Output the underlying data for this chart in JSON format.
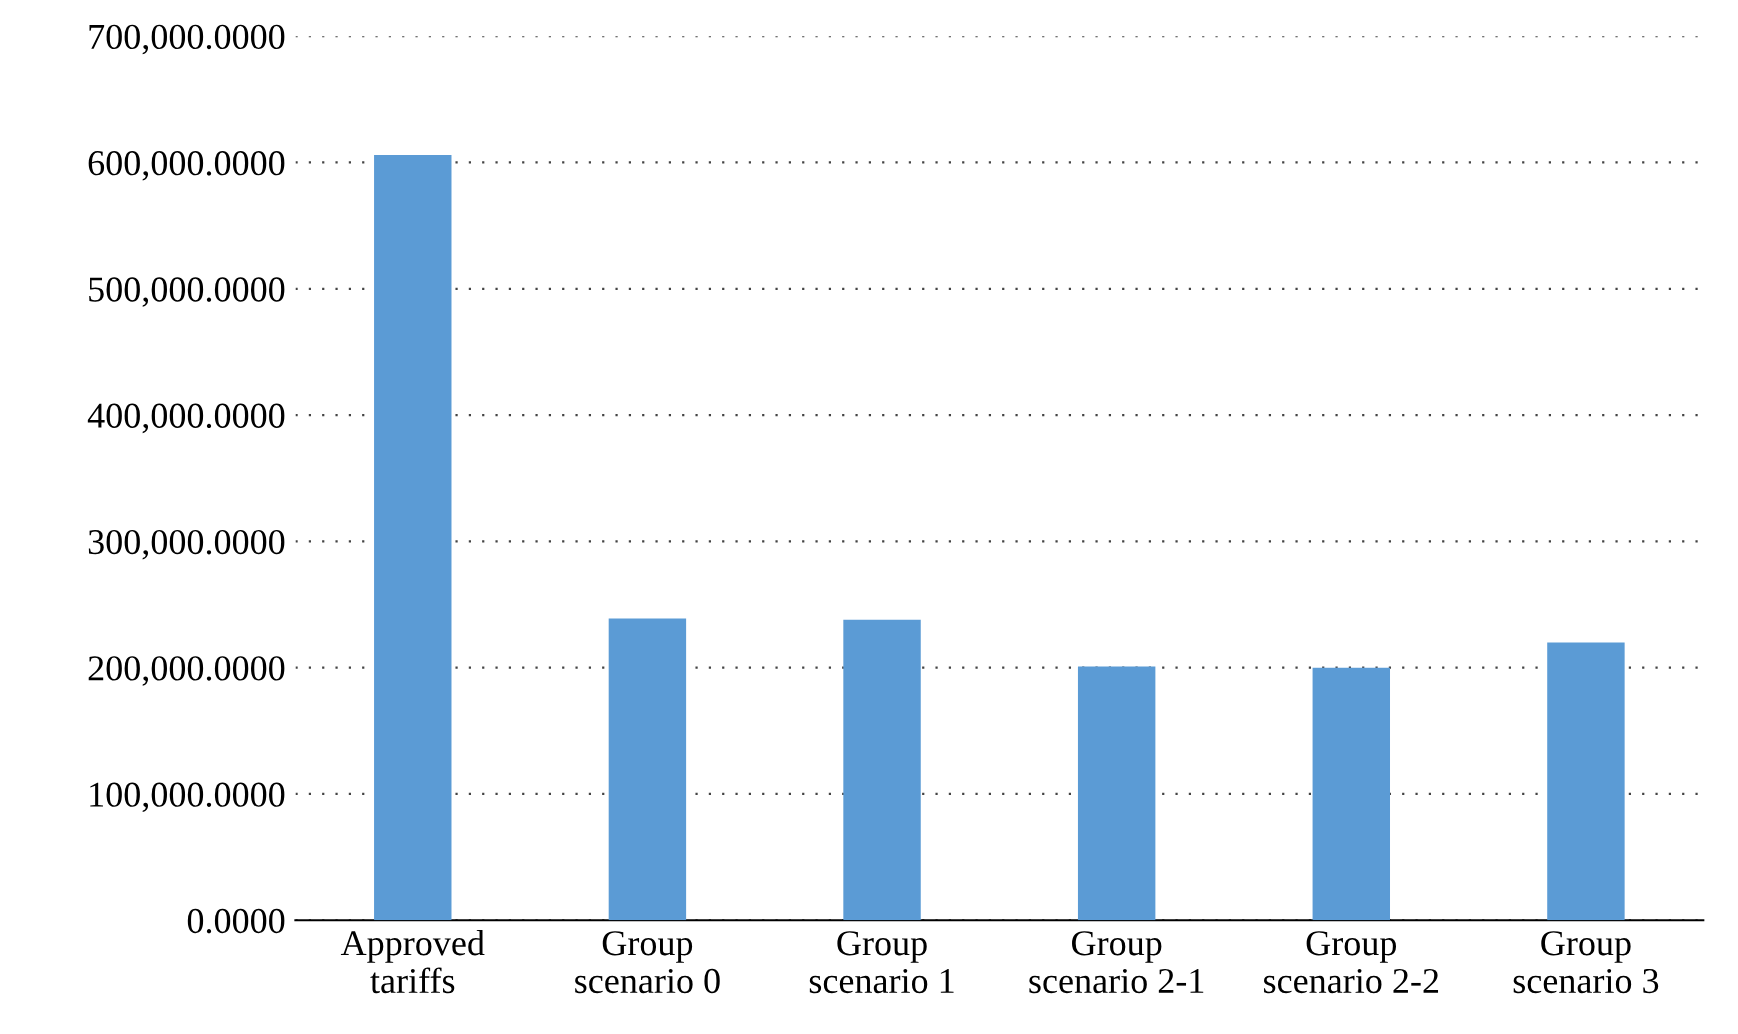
{
  "chart_data": {
    "type": "bar",
    "categories": [
      "Approved\ntariffs",
      "Group\nscenario 0",
      "Group\nscenario 1",
      "Group\nscenario 2-1",
      "Group\nscenario 2-2",
      "Group\nscenario 3"
    ],
    "values": [
      606000,
      239000,
      238000,
      201000,
      200000,
      220000
    ],
    "color": "#5b9bd5",
    "ylim": [
      0,
      700000
    ],
    "yticks": [
      {
        "value": 0,
        "label": "0.0000"
      },
      {
        "value": 100000,
        "label": "100,000.0000"
      },
      {
        "value": 200000,
        "label": "200,000.0000"
      },
      {
        "value": 300000,
        "label": "300,000.0000"
      },
      {
        "value": 400000,
        "label": "400,000.0000"
      },
      {
        "value": 500000,
        "label": "500,000.0000"
      },
      {
        "value": 600000,
        "label": "600,000.0000"
      },
      {
        "value": 700000,
        "label": "700,000.0000"
      }
    ],
    "grid": "y"
  }
}
